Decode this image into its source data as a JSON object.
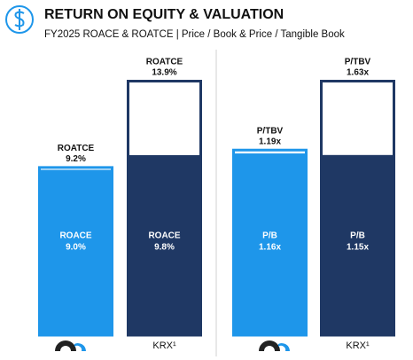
{
  "title": "RETURN ON EQUITY & VALUATION",
  "subtitle": "FY2025 ROACE & ROATCE | Price / Book & Price / Tangible Book",
  "chart_data": [
    {
      "type": "overlay-bar",
      "categories": [
        null,
        "KRX¹"
      ],
      "colors": [
        "#1e96ea",
        "#1f3864"
      ],
      "series": [
        {
          "name": "ROATCE",
          "values": [
            9.2,
            13.9
          ],
          "value_labels": [
            "9.2%",
            "13.9%"
          ]
        },
        {
          "name": "ROACE",
          "values": [
            9.0,
            9.8
          ],
          "value_labels": [
            "9.0%",
            "9.8%"
          ]
        }
      ]
    },
    {
      "type": "overlay-bar",
      "categories": [
        null,
        "KRX¹"
      ],
      "colors": [
        "#1e96ea",
        "#1f3864"
      ],
      "series": [
        {
          "name": "P/TBV",
          "values": [
            1.19,
            1.63
          ],
          "value_labels": [
            "1.19x",
            "1.63x"
          ]
        },
        {
          "name": "P/B",
          "values": [
            1.16,
            1.15
          ],
          "value_labels": [
            "1.16x",
            "1.15x"
          ]
        }
      ]
    }
  ]
}
